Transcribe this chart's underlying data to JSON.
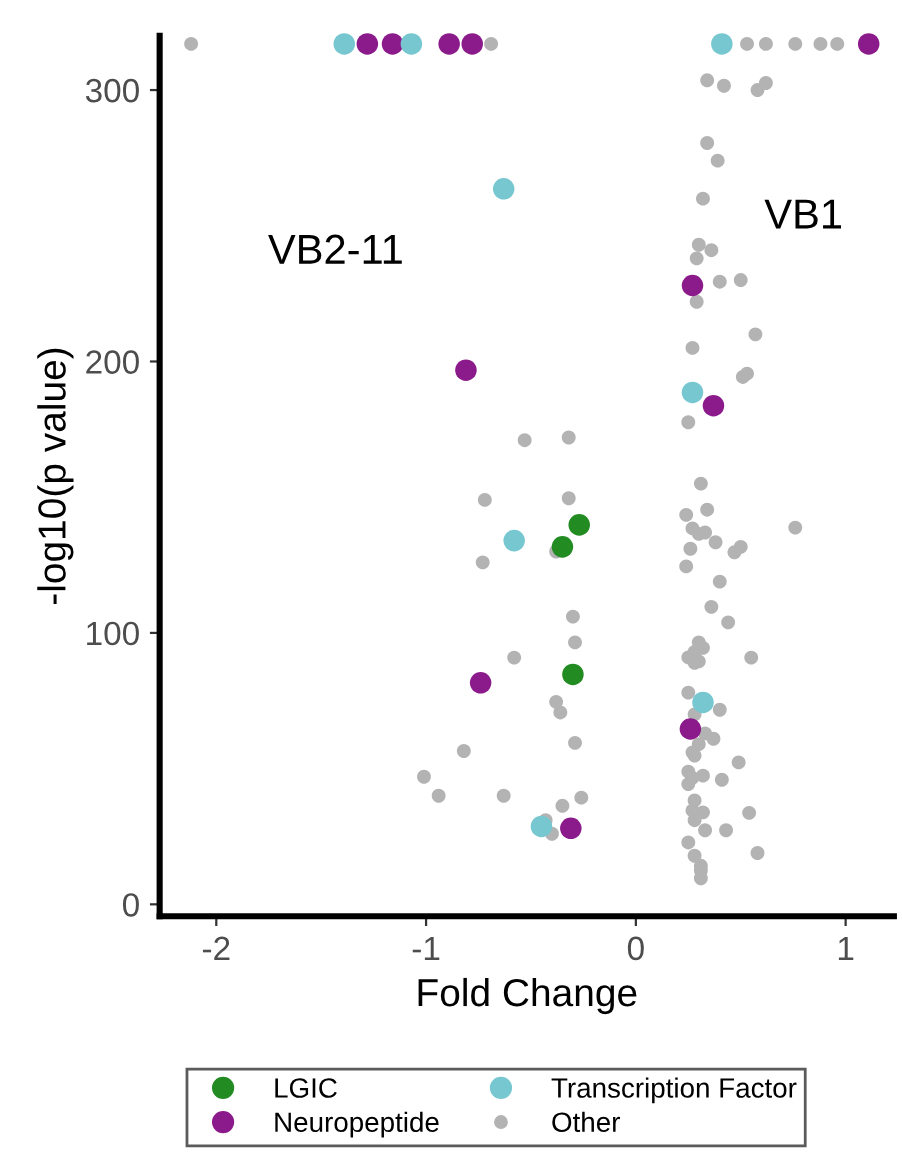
{
  "chart_data": {
    "type": "scatter",
    "xlabel": "Fold Change",
    "ylabel": "-log10(p value)",
    "xlim": [
      -2.27,
      1.23
    ],
    "ylim": [
      -4.4,
      320
    ],
    "xticks": [
      -2,
      -1,
      0,
      1
    ],
    "yticks": [
      0,
      100,
      200,
      300
    ],
    "grid": false,
    "legend": "bottom",
    "marker": "circle",
    "annotations": [
      "VB2-11",
      "VB1"
    ],
    "series": [
      {
        "name": "LGIC",
        "color": "#228b22",
        "x": [
          -0.27,
          -0.35,
          -0.3
        ],
        "values": [
          139.8,
          131.7,
          84.7
        ]
      },
      {
        "name": "Neuropeptide",
        "color": "#8b1a8b",
        "x": [
          -1.28,
          -1.16,
          -0.89,
          -0.78,
          1.11,
          -0.81,
          -0.74,
          0.27,
          0.37,
          0.26,
          -0.31
        ],
        "values": [
          317,
          317,
          317,
          317,
          317,
          196.8,
          81.6,
          228,
          183.7,
          64.6,
          28
        ]
      },
      {
        "name": "Transcription Factor",
        "color": "#76c7d0",
        "x": [
          -1.39,
          -1.07,
          0.41,
          -0.63,
          -0.58,
          0.27,
          0.32,
          -0.45
        ],
        "values": [
          317,
          317,
          317,
          263.6,
          134,
          188.6,
          74.4,
          28.7
        ]
      },
      {
        "name": "Other",
        "color": "#b3b3b3",
        "x": [
          -2.12,
          -0.69,
          0.53,
          0.62,
          0.76,
          0.88,
          0.96,
          0.34,
          0.42,
          0.58,
          0.62,
          0.34,
          0.39,
          0.32,
          0.3,
          0.36,
          -0.72,
          -0.73,
          -0.58,
          -0.82,
          -1.01,
          -0.94,
          -0.63,
          -0.53,
          -0.32,
          0.29,
          0.4,
          0.5,
          0.29,
          0.57,
          0.27,
          0.53,
          0.51,
          0.25,
          0.31,
          0.24,
          0.34,
          0.27,
          0.3,
          0.33,
          0.76,
          0.38,
          0.26,
          0.47,
          0.5,
          0.24,
          0.4,
          0.36,
          0.44,
          -0.32,
          -0.38,
          -0.3,
          -0.29,
          -0.38,
          -0.36,
          -0.29,
          -0.26,
          -0.35,
          -0.43,
          -0.4,
          0.3,
          0.32,
          0.25,
          0.28,
          0.3,
          0.28,
          0.55,
          0.25,
          0.4,
          0.28,
          0.33,
          0.37,
          0.3,
          0.27,
          0.28,
          0.49,
          0.25,
          0.32,
          0.27,
          0.41,
          0.25,
          0.28,
          0.27,
          0.32,
          0.54,
          0.28,
          0.33,
          0.43,
          0.25,
          0.58,
          0.28,
          0.31,
          0.31,
          0.31
        ],
        "values": [
          317,
          317,
          317,
          317,
          317,
          317,
          317,
          303.6,
          301.6,
          300,
          302.6,
          280.5,
          274,
          260,
          243,
          241,
          149,
          126,
          90.9,
          56.5,
          47,
          40,
          40,
          171,
          172,
          238,
          229.4,
          230,
          222,
          210,
          205,
          195.5,
          194.3,
          177.6,
          155,
          143.5,
          145.4,
          138.5,
          136.5,
          137,
          138.8,
          133.4,
          131,
          129.7,
          131.7,
          124.5,
          118.9,
          109.6,
          103.9,
          149.6,
          130,
          106,
          96.5,
          74.6,
          70.7,
          59.5,
          39.3,
          36.3,
          31,
          26,
          96.5,
          94.5,
          91,
          89,
          89.5,
          93,
          90.9,
          78,
          71.7,
          70,
          63,
          61,
          59,
          56,
          54.8,
          52.3,
          48.9,
          47.4,
          46.6,
          45.9,
          44.3,
          38.3,
          34.6,
          33.9,
          33.7,
          31,
          27.3,
          27.3,
          22.8,
          18.9,
          17.9,
          14.2,
          9.6,
          12.5
        ]
      }
    ]
  }
}
